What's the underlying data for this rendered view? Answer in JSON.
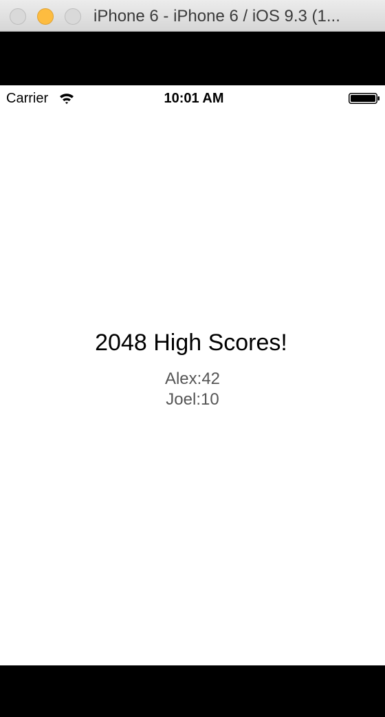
{
  "window": {
    "title": "iPhone 6 - iPhone 6 / iOS 9.3 (1..."
  },
  "statusbar": {
    "carrier": "Carrier",
    "time": "10:01 AM",
    "icons": [
      "wifi-icon",
      "battery-icon"
    ]
  },
  "main": {
    "heading": "2048 High Scores!",
    "scores": [
      {
        "text": "Alex:42"
      },
      {
        "text": "Joel:10"
      }
    ]
  },
  "colors": {
    "minimize_button": "#fdbc40",
    "score_text": "#555555",
    "screen_background": "#ffffff",
    "frame_background": "#000000"
  }
}
